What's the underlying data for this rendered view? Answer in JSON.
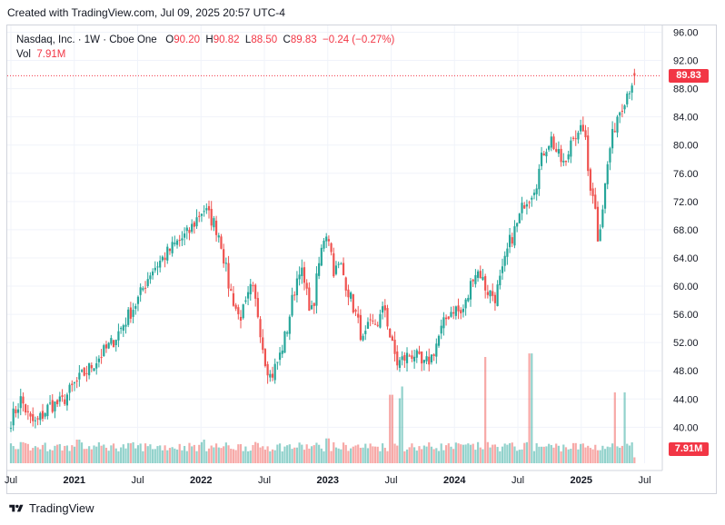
{
  "header": {
    "created_text": "Created with TradingView.com, Jul 09, 2025 20:57 UTC-4"
  },
  "legend": {
    "symbol": "Nasdaq, Inc. · 1W · Cboe One",
    "open_label": "O",
    "open": "90.20",
    "high_label": "H",
    "high": "90.82",
    "low_label": "L",
    "low": "88.50",
    "close_label": "C",
    "close": "89.83",
    "change": "−0.24 (−0.27%)",
    "vol_label": "Vol",
    "vol": "7.91M"
  },
  "badges": {
    "price": "89.83",
    "volume": "7.91M"
  },
  "footer": {
    "brand": "TradingView"
  },
  "colors": {
    "up": "#26a69a",
    "down": "#ef5350",
    "accent": "#f23645",
    "grid": "#f0f3fa"
  },
  "chart_data": {
    "type": "candlestick",
    "title": "Nasdaq, Inc. · 1W · Cboe One",
    "timeframe": "1W",
    "last_price": 89.83,
    "ohlc_last": {
      "open": 90.2,
      "high": 90.82,
      "low": 88.5,
      "close": 89.83
    },
    "y_ticks": [
      "96.00",
      "92.00",
      "88.00",
      "84.00",
      "80.00",
      "76.00",
      "72.00",
      "68.00",
      "64.00",
      "60.00",
      "56.00",
      "52.00",
      "48.00",
      "44.00",
      "40.00"
    ],
    "ylim": [
      36,
      97
    ],
    "x_ticks": [
      {
        "label": "Jul",
        "t": 0.0
      },
      {
        "label": "2021",
        "t": 0.5
      },
      {
        "label": "Jul",
        "t": 1.0
      },
      {
        "label": "2022",
        "t": 1.5
      },
      {
        "label": "Jul",
        "t": 2.0
      },
      {
        "label": "2023",
        "t": 2.5
      },
      {
        "label": "Jul",
        "t": 3.0
      },
      {
        "label": "2024",
        "t": 3.5
      },
      {
        "label": "Jul",
        "t": 4.0
      },
      {
        "label": "2025",
        "t": 4.5
      },
      {
        "label": "Jul",
        "t": 5.0
      }
    ],
    "x_unit": "years since Jul 2020",
    "anchors": [
      [
        0.0,
        41
      ],
      [
        0.08,
        44
      ],
      [
        0.15,
        41
      ],
      [
        0.2,
        40.5
      ],
      [
        0.3,
        43
      ],
      [
        0.4,
        43.5
      ],
      [
        0.5,
        46
      ],
      [
        0.6,
        48
      ],
      [
        0.7,
        50
      ],
      [
        0.8,
        52
      ],
      [
        0.9,
        55
      ],
      [
        1.0,
        58
      ],
      [
        1.1,
        62
      ],
      [
        1.2,
        64
      ],
      [
        1.3,
        66
      ],
      [
        1.4,
        67.5
      ],
      [
        1.48,
        70
      ],
      [
        1.52,
        71
      ],
      [
        1.6,
        69
      ],
      [
        1.65,
        67
      ],
      [
        1.72,
        60
      ],
      [
        1.8,
        55.5
      ],
      [
        1.85,
        57
      ],
      [
        1.9,
        60
      ],
      [
        1.95,
        56
      ],
      [
        2.0,
        50
      ],
      [
        2.05,
        47
      ],
      [
        2.12,
        50
      ],
      [
        2.18,
        54
      ],
      [
        2.22,
        58
      ],
      [
        2.28,
        63
      ],
      [
        2.33,
        59
      ],
      [
        2.38,
        56
      ],
      [
        2.42,
        62
      ],
      [
        2.47,
        67
      ],
      [
        2.5,
        68
      ],
      [
        2.55,
        62
      ],
      [
        2.6,
        63
      ],
      [
        2.65,
        60
      ],
      [
        2.72,
        56
      ],
      [
        2.78,
        52
      ],
      [
        2.82,
        54
      ],
      [
        2.9,
        55
      ],
      [
        2.95,
        57
      ],
      [
        3.0,
        52
      ],
      [
        3.05,
        49
      ],
      [
        3.12,
        50
      ],
      [
        3.18,
        50.5
      ],
      [
        3.25,
        48.5
      ],
      [
        3.32,
        50
      ],
      [
        3.4,
        54
      ],
      [
        3.45,
        56
      ],
      [
        3.5,
        57
      ],
      [
        3.55,
        56
      ],
      [
        3.6,
        58
      ],
      [
        3.65,
        62
      ],
      [
        3.7,
        62
      ],
      [
        3.75,
        59.5
      ],
      [
        3.82,
        58.5
      ],
      [
        3.88,
        62
      ],
      [
        3.93,
        66
      ],
      [
        4.0,
        69
      ],
      [
        4.05,
        72
      ],
      [
        4.1,
        73
      ],
      [
        4.15,
        75
      ],
      [
        4.2,
        79
      ],
      [
        4.26,
        81
      ],
      [
        4.33,
        78
      ],
      [
        4.38,
        77
      ],
      [
        4.43,
        82
      ],
      [
        4.48,
        81
      ],
      [
        4.52,
        83
      ],
      [
        4.56,
        75
      ],
      [
        4.6,
        73
      ],
      [
        4.63,
        67
      ],
      [
        4.66,
        70
      ],
      [
        4.72,
        79
      ],
      [
        4.78,
        84
      ],
      [
        4.85,
        87
      ],
      [
        4.92,
        89.8
      ]
    ],
    "volume": {
      "last": "7.91M",
      "spikes": [
        {
          "t": 0.05,
          "rel": 0.12
        },
        {
          "t": 0.18,
          "rel": 0.13
        },
        {
          "t": 0.53,
          "rel": 0.2
        },
        {
          "t": 1.53,
          "rel": 0.2
        },
        {
          "t": 2.5,
          "rel": 0.21
        },
        {
          "t": 3.0,
          "rel": 0.58
        },
        {
          "t": 3.07,
          "rel": 0.55
        },
        {
          "t": 3.08,
          "rel": 0.65
        },
        {
          "t": 3.75,
          "rel": 0.9
        },
        {
          "t": 4.1,
          "rel": 0.93
        },
        {
          "t": 4.76,
          "rel": 0.6
        },
        {
          "t": 4.84,
          "rel": 0.6
        }
      ]
    }
  }
}
